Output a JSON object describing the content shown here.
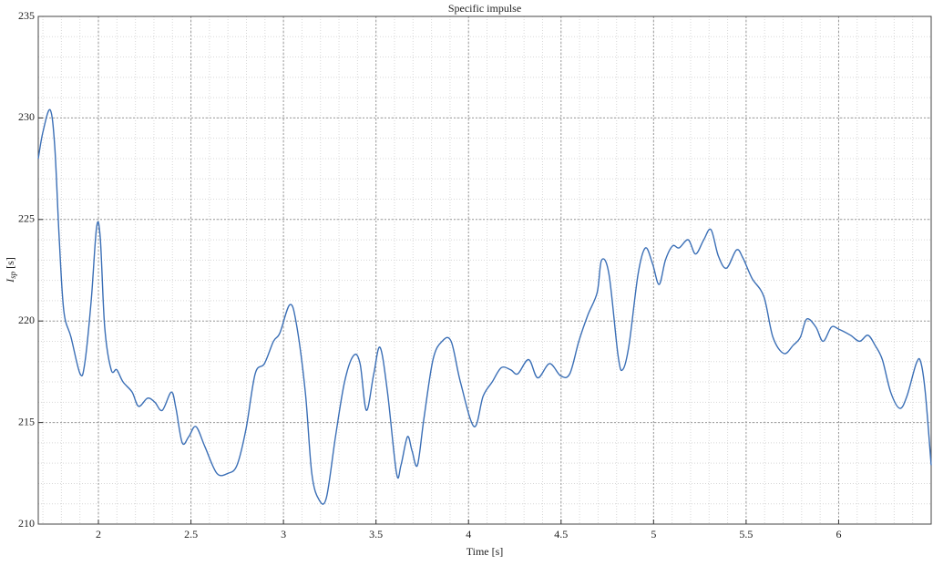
{
  "chart_data": {
    "type": "line",
    "title": "Specific impulse",
    "xlabel": "Time [s]",
    "ylabel": {
      "main": "I",
      "sub": "sp",
      "unit": "[s]"
    },
    "xlim": [
      1.675,
      6.5
    ],
    "ylim": [
      210,
      235
    ],
    "xticks": [
      2,
      2.5,
      3,
      3.5,
      4,
      4.5,
      5,
      5.5,
      6
    ],
    "yticks": [
      210,
      215,
      220,
      225,
      230,
      235
    ],
    "grid": true,
    "minor_grid": true,
    "series": [
      {
        "color": "#3b6fb6",
        "x": [
          1.675,
          1.7,
          1.739,
          1.764,
          1.788,
          1.813,
          1.852,
          1.901,
          1.926,
          1.961,
          1.99,
          2.01,
          2.034,
          2.069,
          2.099,
          2.133,
          2.182,
          2.217,
          2.266,
          2.305,
          2.345,
          2.394,
          2.419,
          2.453,
          2.488,
          2.527,
          2.576,
          2.64,
          2.7,
          2.749,
          2.798,
          2.847,
          2.897,
          2.946,
          2.98,
          3.034,
          3.069,
          3.118,
          3.153,
          3.192,
          3.232,
          3.281,
          3.33,
          3.379,
          3.414,
          3.448,
          3.488,
          3.522,
          3.562,
          3.611,
          3.635,
          3.67,
          3.695,
          3.724,
          3.759,
          3.808,
          3.857,
          3.906,
          3.956,
          4.03,
          4.079,
          4.128,
          4.177,
          4.227,
          4.266,
          4.325,
          4.374,
          4.438,
          4.498,
          4.547,
          4.596,
          4.645,
          4.695,
          4.719,
          4.759,
          4.808,
          4.833,
          4.867,
          4.916,
          4.956,
          4.995,
          5.03,
          5.064,
          5.103,
          5.138,
          5.187,
          5.227,
          5.271,
          5.31,
          5.35,
          5.394,
          5.448,
          5.483,
          5.532,
          5.596,
          5.645,
          5.704,
          5.754,
          5.793,
          5.828,
          5.877,
          5.916,
          5.961,
          6.0,
          6.064,
          6.113,
          6.158,
          6.197,
          6.236,
          6.281,
          6.33,
          6.369,
          6.419,
          6.443,
          6.468,
          6.5
        ],
        "values": [
          228.0,
          229.3,
          230.4,
          228.6,
          224.1,
          220.5,
          219.2,
          217.4,
          217.9,
          221.0,
          224.6,
          224.1,
          219.7,
          217.6,
          217.6,
          217.0,
          216.5,
          215.8,
          216.2,
          216.0,
          215.6,
          216.5,
          215.7,
          214.0,
          214.3,
          214.8,
          213.8,
          212.5,
          212.5,
          212.9,
          214.7,
          217.4,
          217.9,
          219.0,
          219.4,
          220.8,
          219.9,
          216.5,
          212.5,
          211.2,
          211.3,
          214.3,
          217.0,
          218.3,
          217.9,
          215.6,
          217.4,
          218.7,
          216.5,
          212.5,
          212.9,
          214.3,
          213.6,
          212.9,
          215.2,
          218.1,
          219.0,
          219.0,
          217.0,
          214.8,
          216.3,
          217.0,
          217.7,
          217.6,
          217.4,
          218.1,
          217.2,
          217.9,
          217.3,
          217.4,
          219.0,
          220.3,
          221.4,
          223.0,
          222.3,
          218.3,
          217.6,
          218.8,
          222.3,
          223.6,
          222.8,
          221.8,
          223.0,
          223.7,
          223.6,
          224.0,
          223.3,
          224.0,
          224.5,
          223.2,
          222.6,
          223.5,
          223.1,
          222.1,
          221.2,
          219.2,
          218.4,
          218.8,
          219.2,
          220.1,
          219.7,
          219.0,
          219.7,
          219.6,
          219.3,
          219.0,
          219.3,
          218.8,
          218.1,
          216.5,
          215.7,
          216.3,
          217.9,
          218.0,
          216.5,
          212.9
        ]
      }
    ]
  }
}
